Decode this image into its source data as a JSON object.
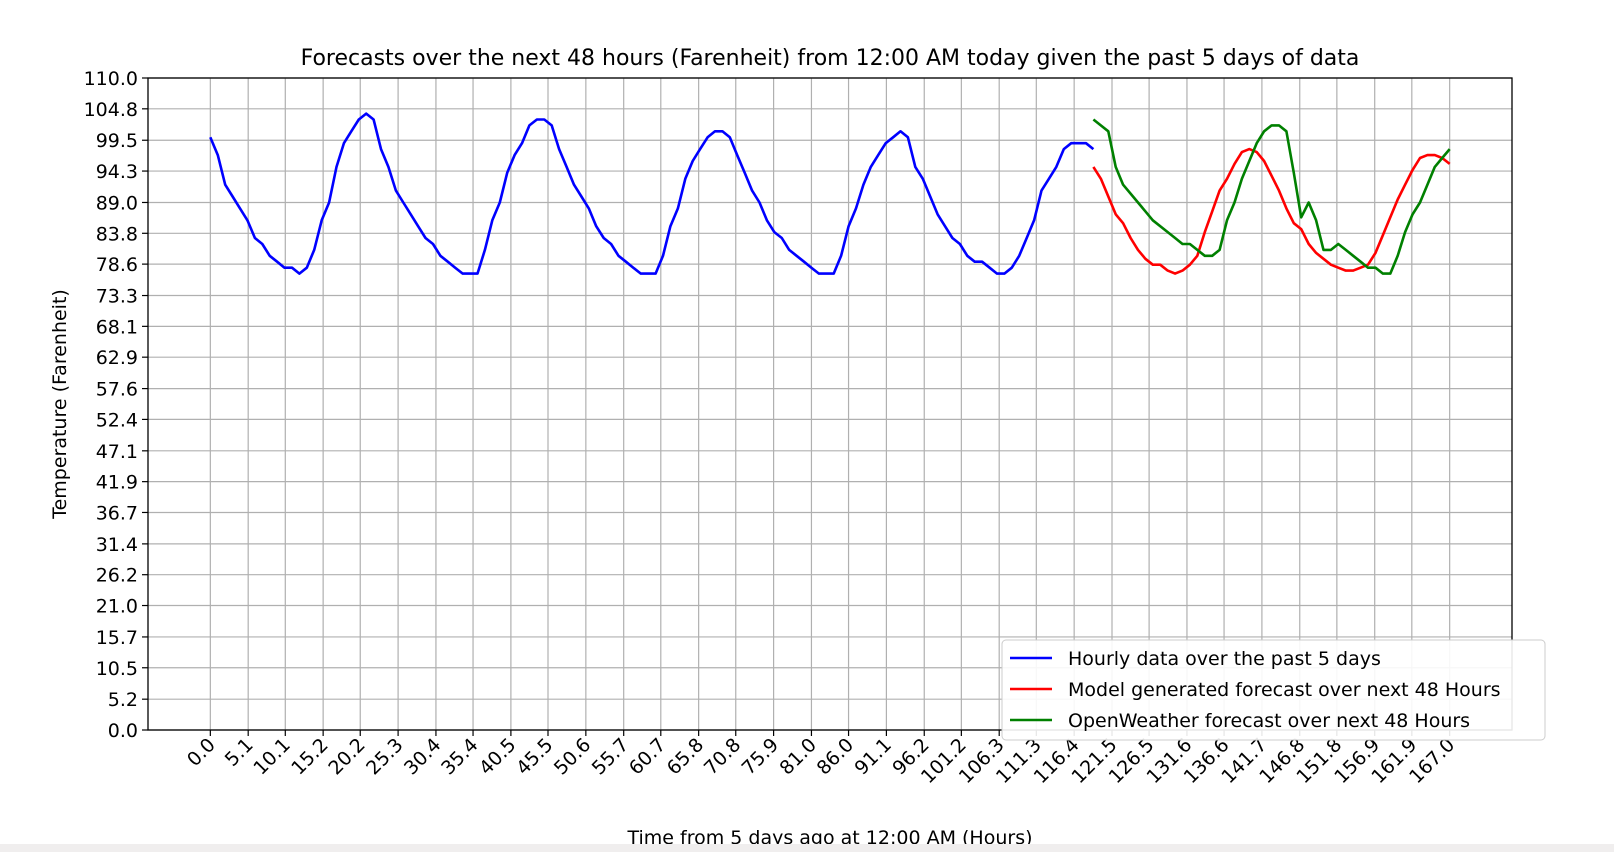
{
  "chart_data": {
    "type": "line",
    "title": "Forecasts over the next 48 hours (Farenheit) from 12:00 AM today given the past 5 days of data",
    "xlabel": "Time from 5 days ago at 12:00 AM (Hours)",
    "ylabel": "Temperature (Farenheit)",
    "xlim": [
      -8.4,
      175.4
    ],
    "ylim": [
      0,
      110
    ],
    "grid": true,
    "legend_position": "lower-right",
    "x_tick_labels": [
      "0.0",
      "5.1",
      "10.1",
      "15.2",
      "20.2",
      "25.3",
      "30.4",
      "35.4",
      "40.5",
      "45.5",
      "50.6",
      "55.7",
      "60.7",
      "65.8",
      "70.8",
      "75.9",
      "81.0",
      "86.0",
      "91.1",
      "96.2",
      "101.2",
      "106.3",
      "111.3",
      "116.4",
      "121.5",
      "126.5",
      "131.6",
      "136.6",
      "141.7",
      "146.8",
      "151.8",
      "156.9",
      "161.9",
      "167.0"
    ],
    "y_tick_labels": [
      "0.0",
      "5.2",
      "10.5",
      "15.7",
      "21.0",
      "26.2",
      "31.4",
      "36.7",
      "41.9",
      "47.1",
      "52.4",
      "57.6",
      "62.9",
      "68.1",
      "73.3",
      "78.6",
      "83.8",
      "89.0",
      "94.3",
      "99.5",
      "104.8",
      "110.0"
    ],
    "series": [
      {
        "name": "Hourly data over the past 5 days",
        "color": "#0000ff",
        "x": [
          0,
          1,
          2,
          3,
          4,
          5,
          6,
          7,
          8,
          9,
          10,
          11,
          12,
          13,
          14,
          15,
          16,
          17,
          18,
          19,
          20,
          21,
          22,
          23,
          24,
          25,
          26,
          27,
          28,
          29,
          30,
          31,
          32,
          33,
          34,
          35,
          36,
          37,
          38,
          39,
          40,
          41,
          42,
          43,
          44,
          45,
          46,
          47,
          48,
          49,
          50,
          51,
          52,
          53,
          54,
          55,
          56,
          57,
          58,
          59,
          60,
          61,
          62,
          63,
          64,
          65,
          66,
          67,
          68,
          69,
          70,
          71,
          72,
          73,
          74,
          75,
          76,
          77,
          78,
          79,
          80,
          81,
          82,
          83,
          84,
          85,
          86,
          87,
          88,
          89,
          90,
          91,
          92,
          93,
          94,
          95,
          96,
          97,
          98,
          99,
          100,
          101,
          102,
          103,
          104,
          105,
          106,
          107,
          108,
          109,
          110,
          111,
          112,
          113,
          114,
          115,
          116,
          117,
          118,
          119
        ],
        "y": [
          100,
          97,
          92,
          90,
          88,
          86,
          83,
          82,
          80,
          79,
          78,
          78,
          77,
          78,
          81,
          86,
          89,
          95,
          99,
          101,
          103,
          104,
          103,
          98,
          95,
          91,
          89,
          87,
          85,
          83,
          82,
          80,
          79,
          78,
          77,
          77,
          77,
          81,
          86,
          89,
          94,
          97,
          99,
          102,
          103,
          103,
          102,
          98,
          95,
          92,
          90,
          88,
          85,
          83,
          82,
          80,
          79,
          78,
          77,
          77,
          77,
          80,
          85,
          88,
          93,
          96,
          98,
          100,
          101,
          101,
          100,
          97,
          94,
          91,
          89,
          86,
          84,
          83,
          81,
          80,
          79,
          78,
          77,
          77,
          77,
          80,
          85,
          88,
          92,
          95,
          97,
          99,
          100,
          101,
          100,
          95,
          93,
          90,
          87,
          85,
          83,
          82,
          80,
          79,
          79,
          78,
          77,
          77,
          78,
          80,
          83,
          86,
          91,
          93,
          95,
          98,
          99,
          99,
          99,
          98
        ]
      },
      {
        "name": "Model generated forecast over next 48 Hours",
        "color": "#ff0000",
        "x": [
          119,
          120,
          121,
          122,
          123,
          124,
          125,
          126,
          127,
          128,
          129,
          130,
          131,
          132,
          133,
          134,
          135,
          136,
          137,
          138,
          139,
          140,
          141,
          142,
          143,
          144,
          145,
          146,
          147,
          148,
          149,
          150,
          151,
          152,
          153,
          154,
          155,
          156,
          157,
          158,
          159,
          160,
          161,
          162,
          163,
          164,
          165,
          166,
          167
        ],
        "y": [
          95,
          93,
          90,
          87,
          85.5,
          83,
          81,
          79.5,
          78.5,
          78.5,
          77.5,
          77,
          77.5,
          78.5,
          80,
          84,
          87.5,
          91,
          93,
          95.5,
          97.5,
          98,
          97.5,
          96,
          93.5,
          91,
          88,
          85.5,
          84.5,
          82,
          80.5,
          79.5,
          78.5,
          78,
          77.5,
          77.5,
          78,
          78.5,
          80.5,
          83.5,
          86.5,
          89.5,
          92,
          94.5,
          96.5,
          97,
          97,
          96.5,
          95.5
        ]
      },
      {
        "name": "OpenWeather forecast over next 48 Hours",
        "color": "#008000",
        "x": [
          119,
          121,
          122,
          123,
          125,
          127,
          129,
          130,
          131,
          132,
          133,
          134,
          135,
          136,
          137,
          138,
          139,
          140,
          141,
          142,
          143,
          144,
          145,
          146,
          147,
          148,
          149,
          150,
          151,
          152,
          153,
          154,
          155,
          156,
          157,
          158,
          159,
          160,
          161,
          162,
          163,
          164,
          165,
          166,
          167
        ],
        "y": [
          103,
          101,
          95,
          92,
          89,
          86,
          84,
          83,
          82,
          82,
          81,
          80,
          80,
          81,
          86,
          89,
          93,
          96,
          99,
          101,
          102,
          102,
          101,
          94,
          86.5,
          89,
          86,
          81,
          81,
          82,
          81,
          80,
          79,
          78,
          78,
          77,
          77,
          80,
          84,
          87,
          89,
          92,
          95,
          96.5,
          98
        ]
      }
    ]
  }
}
